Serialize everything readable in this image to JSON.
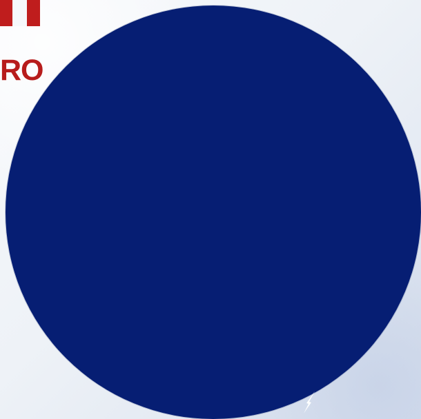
{
  "logo": {
    "text": "RO"
  },
  "graphics": {
    "brand_red": "#bf1d1d",
    "circle_blue": "#061e73",
    "background_light": "#f6f8fb",
    "background_shadow": "#d9e1ee",
    "sparkle_icon": "sparkle-icon"
  }
}
